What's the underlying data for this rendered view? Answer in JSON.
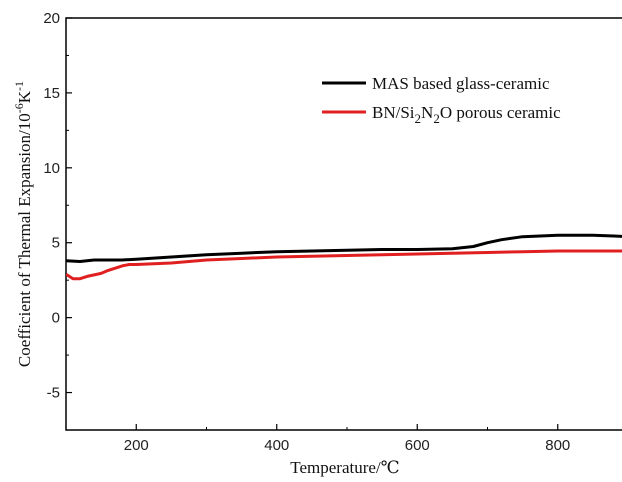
{
  "chart_data": {
    "type": "line",
    "title": "",
    "xlabel": "Temperature/℃",
    "ylabel": {
      "prefix": "Coefficient of Thermal Expansion/10",
      "sup1": "-6",
      "mid": "K",
      "sup2": "-1"
    },
    "xlim": [
      100,
      900
    ],
    "ylim": [
      -7.5,
      20
    ],
    "xticks": [
      200,
      400,
      600,
      800
    ],
    "yticks": [
      -5,
      0,
      5,
      10,
      15,
      20
    ],
    "grid": false,
    "legend_position": "top-right",
    "series": [
      {
        "name": "MAS based glass-ceramic",
        "color": "#000000",
        "x": [
          100,
          120,
          140,
          160,
          180,
          200,
          250,
          300,
          350,
          400,
          450,
          500,
          550,
          600,
          650,
          680,
          700,
          720,
          750,
          800,
          850,
          880,
          900
        ],
        "y": [
          3.8,
          3.75,
          3.85,
          3.85,
          3.85,
          3.9,
          4.05,
          4.2,
          4.3,
          4.4,
          4.45,
          4.5,
          4.55,
          4.55,
          4.6,
          4.75,
          5.0,
          5.2,
          5.4,
          5.5,
          5.5,
          5.45,
          5.4
        ]
      },
      {
        "name": {
          "pre": "BN/Si",
          "sub1": "2",
          "mid": "N",
          "sub2": "2",
          "post": "O porous ceramic"
        },
        "color": "#e02020",
        "x": [
          100,
          110,
          120,
          130,
          140,
          150,
          160,
          170,
          180,
          190,
          200,
          250,
          300,
          350,
          400,
          450,
          500,
          550,
          600,
          650,
          700,
          750,
          800,
          850,
          900
        ],
        "y": [
          2.9,
          2.6,
          2.6,
          2.75,
          2.85,
          2.95,
          3.15,
          3.3,
          3.45,
          3.55,
          3.55,
          3.65,
          3.85,
          3.95,
          4.05,
          4.1,
          4.15,
          4.2,
          4.25,
          4.3,
          4.35,
          4.4,
          4.45,
          4.45,
          4.45
        ]
      }
    ]
  }
}
